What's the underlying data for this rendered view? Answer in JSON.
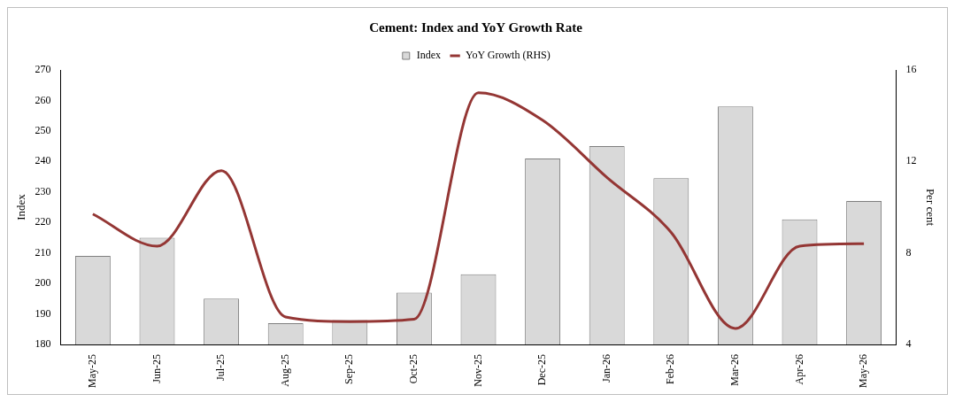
{
  "chart_data": {
    "type": "bar",
    "title": "Cement: Index and YoY Growth Rate",
    "ylabel": "Index",
    "y2label": "Per cent",
    "legend": "top",
    "categories": [
      "May-25",
      "Jun-25",
      "Jul-25",
      "Aug-25",
      "Sep-25",
      "Oct-25",
      "Nov-25",
      "Dec-25",
      "Jan-26",
      "Feb-26",
      "Mar-26",
      "Apr-26",
      "May-26"
    ],
    "series": [
      {
        "name": "Index",
        "color": "#d9d9d9",
        "values": [
          209,
          215,
          195,
          187,
          188,
          197,
          203,
          241,
          245,
          234.5,
          258,
          221,
          227
        ]
      },
      {
        "name": "YoY Growth (RHS)",
        "type": "line",
        "axis": "y2",
        "color": "#943634",
        "values": [
          9.7,
          8.3,
          11.6,
          5.2,
          5.0,
          5.1,
          15.0,
          13.8,
          11.3,
          8.9,
          4.7,
          8.3,
          8.4
        ]
      }
    ],
    "ylim": [
      180,
      270
    ],
    "yticks": [
      180,
      190,
      200,
      210,
      220,
      230,
      240,
      250,
      260,
      270
    ],
    "y2lim": [
      4,
      16
    ],
    "y2ticks": [
      4,
      8,
      12,
      16
    ]
  }
}
